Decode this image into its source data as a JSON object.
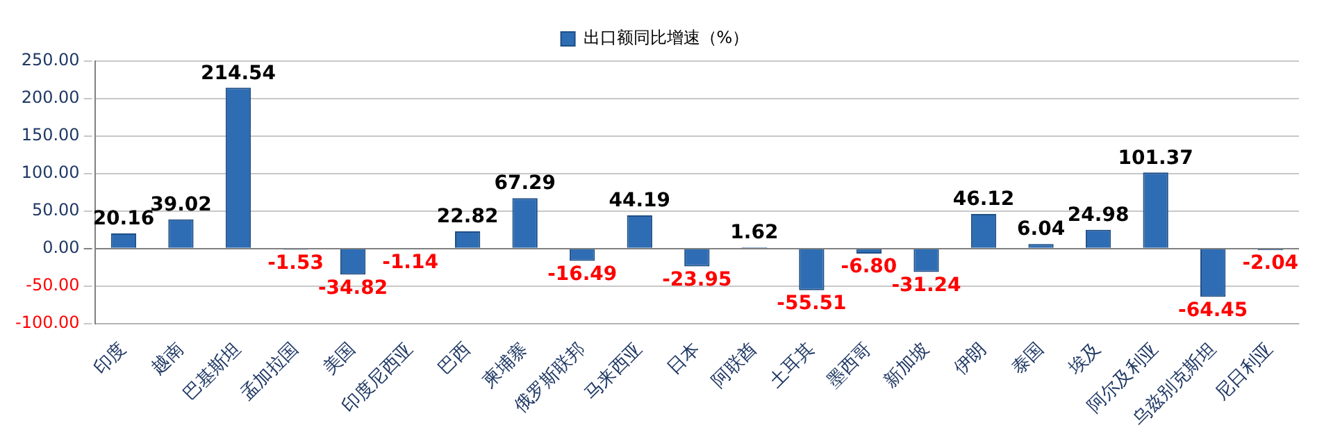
{
  "chart_data": {
    "type": "bar",
    "categories": [
      "印度",
      "越南",
      "巴基斯坦",
      "孟加拉国",
      "美国",
      "印度尼西亚",
      "巴西",
      "柬埔寨",
      "俄罗斯联邦",
      "马来西亚",
      "日本",
      "阿联酋",
      "土耳其",
      "墨西哥",
      "新加坡",
      "伊朗",
      "泰国",
      "埃及",
      "阿尔及利亚",
      "乌兹别克斯坦",
      "尼日利亚"
    ],
    "series": [
      {
        "name": "出口额同比增速（%）",
        "color": "#2e6db4",
        "values": [
          20.16,
          39.02,
          214.54,
          -1.53,
          -34.82,
          -1.14,
          22.82,
          67.29,
          -16.49,
          44.19,
          -23.95,
          1.62,
          -55.51,
          -6.8,
          -31.24,
          46.12,
          6.04,
          24.98,
          101.37,
          -64.45,
          -2.04
        ],
        "value_labels": [
          "20.16",
          "39.02",
          "214.54",
          "-1.53",
          "-34.82",
          "-1.14",
          "22.82",
          "67.29",
          "-16.49",
          "44.19",
          "-23.95",
          "1.62",
          "-55.51",
          "-6.80",
          "-31.24",
          "46.12",
          "6.04",
          "24.98",
          "101.37",
          "-64.45",
          "-2.04"
        ]
      }
    ],
    "ylim": [
      -100,
      250
    ],
    "yticks": [
      {
        "value": -100,
        "label": "-100.00"
      },
      {
        "value": -50,
        "label": "-50.00"
      },
      {
        "value": 0,
        "label": "0.00"
      },
      {
        "value": 50,
        "label": "50.00"
      },
      {
        "value": 100,
        "label": "100.00"
      },
      {
        "value": 150,
        "label": "150.00"
      },
      {
        "value": 200,
        "label": "200.00"
      },
      {
        "value": 250,
        "label": "250.00"
      }
    ],
    "grid": "y",
    "legend": "top"
  }
}
